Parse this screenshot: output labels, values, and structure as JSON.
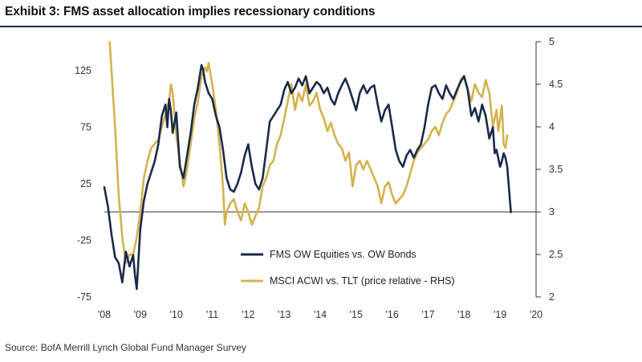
{
  "title": "Exhibit 3: FMS asset allocation implies recessionary conditions",
  "source": "Source: BofA Merrill Lynch Global Fund Manager Survey",
  "colors": {
    "navy": "#1b2a4a",
    "gold": "#d4b24c"
  },
  "chart_data": {
    "type": "line",
    "x_ticks": [
      "'08",
      "'09",
      "'10",
      "'11",
      "'12",
      "'13",
      "'14",
      "'15",
      "'16",
      "'17",
      "'18",
      "'19",
      "'20"
    ],
    "y_left_ticks": [
      "125",
      "75",
      "25",
      "-25",
      "-75"
    ],
    "y_left_range": [
      -75,
      150
    ],
    "y_right_ticks": [
      "5",
      "4.5",
      "4",
      "3.5",
      "3",
      "2.5",
      "2"
    ],
    "y_right_range": [
      2,
      5
    ],
    "legend_position": "bottom-center",
    "series": [
      {
        "name": "FMS OW Equities vs. OW Bonds",
        "axis": "left",
        "color": "#1b2a4a",
        "points": [
          [
            2008.0,
            22
          ],
          [
            2008.1,
            5
          ],
          [
            2008.2,
            -20
          ],
          [
            2008.3,
            -40
          ],
          [
            2008.4,
            -45
          ],
          [
            2008.5,
            -62
          ],
          [
            2008.6,
            -35
          ],
          [
            2008.7,
            -48
          ],
          [
            2008.8,
            -38
          ],
          [
            2008.85,
            -55
          ],
          [
            2008.9,
            -68
          ],
          [
            2009.0,
            -15
          ],
          [
            2009.1,
            10
          ],
          [
            2009.2,
            25
          ],
          [
            2009.3,
            35
          ],
          [
            2009.4,
            45
          ],
          [
            2009.5,
            60
          ],
          [
            2009.6,
            85
          ],
          [
            2009.7,
            95
          ],
          [
            2009.75,
            75
          ],
          [
            2009.8,
            100
          ],
          [
            2009.85,
            90
          ],
          [
            2009.9,
            70
          ],
          [
            2010.0,
            88
          ],
          [
            2010.1,
            40
          ],
          [
            2010.2,
            30
          ],
          [
            2010.3,
            50
          ],
          [
            2010.4,
            70
          ],
          [
            2010.5,
            95
          ],
          [
            2010.6,
            110
          ],
          [
            2010.7,
            130
          ],
          [
            2010.75,
            125
          ],
          [
            2010.8,
            115
          ],
          [
            2010.9,
            105
          ],
          [
            2011.0,
            100
          ],
          [
            2011.1,
            85
          ],
          [
            2011.2,
            75
          ],
          [
            2011.3,
            55
          ],
          [
            2011.4,
            30
          ],
          [
            2011.5,
            20
          ],
          [
            2011.6,
            18
          ],
          [
            2011.7,
            25
          ],
          [
            2011.8,
            35
          ],
          [
            2011.9,
            50
          ],
          [
            2012.0,
            60
          ],
          [
            2012.1,
            40
          ],
          [
            2012.2,
            25
          ],
          [
            2012.3,
            20
          ],
          [
            2012.4,
            30
          ],
          [
            2012.5,
            55
          ],
          [
            2012.6,
            80
          ],
          [
            2012.7,
            85
          ],
          [
            2012.8,
            90
          ],
          [
            2012.9,
            95
          ],
          [
            2013.0,
            108
          ],
          [
            2013.1,
            115
          ],
          [
            2013.2,
            105
          ],
          [
            2013.3,
            110
          ],
          [
            2013.4,
            118
          ],
          [
            2013.5,
            112
          ],
          [
            2013.6,
            120
          ],
          [
            2013.7,
            105
          ],
          [
            2013.8,
            110
          ],
          [
            2013.9,
            115
          ],
          [
            2014.0,
            112
          ],
          [
            2014.1,
            105
          ],
          [
            2014.2,
            110
          ],
          [
            2014.3,
            100
          ],
          [
            2014.4,
            95
          ],
          [
            2014.5,
            105
          ],
          [
            2014.6,
            112
          ],
          [
            2014.7,
            118
          ],
          [
            2014.8,
            110
          ],
          [
            2014.9,
            100
          ],
          [
            2015.0,
            90
          ],
          [
            2015.1,
            105
          ],
          [
            2015.2,
            112
          ],
          [
            2015.3,
            105
          ],
          [
            2015.4,
            110
          ],
          [
            2015.5,
            112
          ],
          [
            2015.6,
            95
          ],
          [
            2015.7,
            80
          ],
          [
            2015.8,
            90
          ],
          [
            2015.9,
            95
          ],
          [
            2016.0,
            75
          ],
          [
            2016.1,
            55
          ],
          [
            2016.2,
            45
          ],
          [
            2016.3,
            40
          ],
          [
            2016.4,
            50
          ],
          [
            2016.5,
            55
          ],
          [
            2016.6,
            48
          ],
          [
            2016.7,
            55
          ],
          [
            2016.8,
            60
          ],
          [
            2016.9,
            75
          ],
          [
            2017.0,
            95
          ],
          [
            2017.1,
            110
          ],
          [
            2017.2,
            112
          ],
          [
            2017.3,
            105
          ],
          [
            2017.4,
            100
          ],
          [
            2017.5,
            112
          ],
          [
            2017.6,
            105
          ],
          [
            2017.7,
            100
          ],
          [
            2017.8,
            108
          ],
          [
            2017.9,
            115
          ],
          [
            2018.0,
            120
          ],
          [
            2018.1,
            108
          ],
          [
            2018.2,
            85
          ],
          [
            2018.3,
            92
          ],
          [
            2018.4,
            80
          ],
          [
            2018.5,
            95
          ],
          [
            2018.6,
            85
          ],
          [
            2018.7,
            65
          ],
          [
            2018.8,
            75
          ],
          [
            2018.85,
            52
          ],
          [
            2018.9,
            55
          ],
          [
            2019.0,
            40
          ],
          [
            2019.05,
            45
          ],
          [
            2019.1,
            52
          ],
          [
            2019.15,
            48
          ],
          [
            2019.2,
            40
          ],
          [
            2019.3,
            0
          ]
        ]
      },
      {
        "name": "MSCI ACWI vs. TLT (price relative - RHS)",
        "axis": "right",
        "color": "#d4b24c",
        "points": [
          [
            2008.15,
            5.0
          ],
          [
            2008.3,
            4.0
          ],
          [
            2008.4,
            3.2
          ],
          [
            2008.5,
            2.7
          ],
          [
            2008.6,
            2.4
          ],
          [
            2008.7,
            2.5
          ],
          [
            2008.8,
            2.5
          ],
          [
            2008.9,
            2.7
          ],
          [
            2009.0,
            3.0
          ],
          [
            2009.1,
            3.4
          ],
          [
            2009.2,
            3.6
          ],
          [
            2009.3,
            3.75
          ],
          [
            2009.4,
            3.8
          ],
          [
            2009.5,
            3.85
          ],
          [
            2009.6,
            4.0
          ],
          [
            2009.7,
            4.15
          ],
          [
            2009.8,
            4.3
          ],
          [
            2009.85,
            4.5
          ],
          [
            2009.9,
            4.4
          ],
          [
            2010.0,
            3.9
          ],
          [
            2010.1,
            3.6
          ],
          [
            2010.2,
            3.3
          ],
          [
            2010.3,
            3.5
          ],
          [
            2010.4,
            3.8
          ],
          [
            2010.5,
            4.1
          ],
          [
            2010.6,
            4.3
          ],
          [
            2010.7,
            4.6
          ],
          [
            2010.8,
            4.7
          ],
          [
            2010.85,
            4.65
          ],
          [
            2010.9,
            4.75
          ],
          [
            2011.0,
            4.5
          ],
          [
            2011.1,
            4.2
          ],
          [
            2011.2,
            3.8
          ],
          [
            2011.3,
            3.3
          ],
          [
            2011.35,
            2.85
          ],
          [
            2011.4,
            3.0
          ],
          [
            2011.5,
            3.1
          ],
          [
            2011.6,
            3.15
          ],
          [
            2011.7,
            3.0
          ],
          [
            2011.8,
            2.9
          ],
          [
            2011.9,
            3.1
          ],
          [
            2012.0,
            3.0
          ],
          [
            2012.1,
            2.85
          ],
          [
            2012.2,
            2.95
          ],
          [
            2012.3,
            3.05
          ],
          [
            2012.4,
            3.3
          ],
          [
            2012.5,
            3.4
          ],
          [
            2012.6,
            3.55
          ],
          [
            2012.7,
            3.6
          ],
          [
            2012.8,
            3.8
          ],
          [
            2012.9,
            3.9
          ],
          [
            2013.0,
            4.1
          ],
          [
            2013.1,
            4.3
          ],
          [
            2013.2,
            4.5
          ],
          [
            2013.3,
            4.2
          ],
          [
            2013.4,
            4.4
          ],
          [
            2013.5,
            4.3
          ],
          [
            2013.6,
            4.5
          ],
          [
            2013.7,
            4.25
          ],
          [
            2013.8,
            4.3
          ],
          [
            2013.9,
            4.4
          ],
          [
            2014.0,
            4.2
          ],
          [
            2014.1,
            4.1
          ],
          [
            2014.2,
            3.95
          ],
          [
            2014.3,
            4.05
          ],
          [
            2014.4,
            3.9
          ],
          [
            2014.5,
            3.8
          ],
          [
            2014.6,
            3.75
          ],
          [
            2014.7,
            3.6
          ],
          [
            2014.8,
            3.7
          ],
          [
            2014.9,
            3.3
          ],
          [
            2015.0,
            3.55
          ],
          [
            2015.1,
            3.6
          ],
          [
            2015.2,
            3.5
          ],
          [
            2015.3,
            3.6
          ],
          [
            2015.4,
            3.5
          ],
          [
            2015.5,
            3.4
          ],
          [
            2015.6,
            3.3
          ],
          [
            2015.7,
            3.1
          ],
          [
            2015.8,
            3.3
          ],
          [
            2015.9,
            3.35
          ],
          [
            2016.0,
            3.2
          ],
          [
            2016.1,
            3.1
          ],
          [
            2016.2,
            3.15
          ],
          [
            2016.3,
            3.2
          ],
          [
            2016.4,
            3.3
          ],
          [
            2016.5,
            3.45
          ],
          [
            2016.6,
            3.6
          ],
          [
            2016.7,
            3.7
          ],
          [
            2016.8,
            3.75
          ],
          [
            2016.9,
            3.8
          ],
          [
            2017.0,
            3.85
          ],
          [
            2017.1,
            3.95
          ],
          [
            2017.2,
            4.0
          ],
          [
            2017.3,
            3.9
          ],
          [
            2017.4,
            4.05
          ],
          [
            2017.5,
            4.15
          ],
          [
            2017.6,
            4.2
          ],
          [
            2017.7,
            4.3
          ],
          [
            2017.8,
            4.4
          ],
          [
            2017.9,
            4.55
          ],
          [
            2018.0,
            4.6
          ],
          [
            2018.1,
            4.45
          ],
          [
            2018.2,
            4.3
          ],
          [
            2018.3,
            4.5
          ],
          [
            2018.4,
            4.4
          ],
          [
            2018.5,
            4.35
          ],
          [
            2018.6,
            4.55
          ],
          [
            2018.7,
            4.4
          ],
          [
            2018.8,
            4.0
          ],
          [
            2018.9,
            4.2
          ],
          [
            2018.95,
            3.95
          ],
          [
            2019.0,
            4.1
          ],
          [
            2019.05,
            4.25
          ],
          [
            2019.1,
            3.8
          ],
          [
            2019.15,
            3.75
          ],
          [
            2019.2,
            3.9
          ]
        ]
      }
    ]
  }
}
